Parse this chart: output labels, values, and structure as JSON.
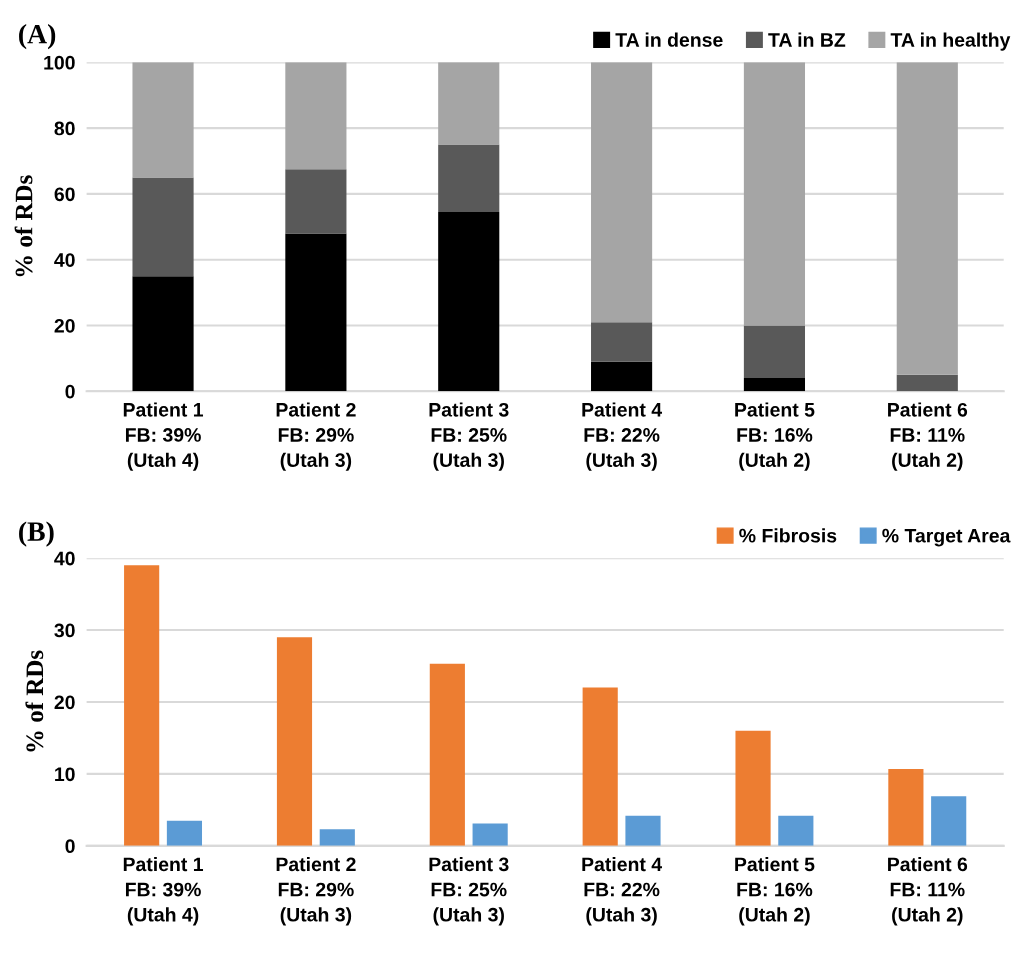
{
  "chart_data": [
    {
      "type": "bar",
      "title": "(A)",
      "ylabel": "% of RDs",
      "stacked": true,
      "categories": [
        "Patient 1\nFB: 39%\n(Utah 4)",
        "Patient 2\nFB: 29%\n(Utah 3)",
        "Patient 3\nFB: 25%\n(Utah 3)",
        "Patient 4\nFB: 22%\n(Utah 3)",
        "Patient 5\nFB: 16%\n(Utah 2)",
        "Patient 6\nFB: 11%\n(Utah 2)"
      ],
      "series": [
        {
          "name": "TA in dense",
          "color": "#000000",
          "values": [
            35,
            48,
            54.5,
            9,
            4,
            0
          ]
        },
        {
          "name": "TA in BZ",
          "color": "#595959",
          "values": [
            30,
            19.5,
            20.5,
            12,
            16,
            5
          ]
        },
        {
          "name": "TA in healthy",
          "color": "#a5a5a5",
          "values": [
            35,
            32.5,
            25,
            79,
            80,
            95
          ]
        }
      ],
      "ylim": [
        0,
        100
      ],
      "yticks": [
        0,
        20,
        40,
        60,
        80,
        100
      ],
      "grid": "y",
      "legend": "top right"
    },
    {
      "type": "bar",
      "title": "(B)",
      "ylabel": "% of RDs",
      "categories": [
        "Patient 1\nFB: 39%\n(Utah 4)",
        "Patient 2\nFB: 29%\n(Utah 3)",
        "Patient 3\nFB: 25%\n(Utah 3)",
        "Patient 4\nFB: 22%\n(Utah 3)",
        "Patient 5\nFB: 16%\n(Utah 2)",
        "Patient 6\nFB: 11%\n(Utah 2)"
      ],
      "series": [
        {
          "name": "% Fibrosis",
          "color": "#ed7d31",
          "values": [
            39,
            29,
            25.3,
            22,
            16,
            10.7
          ]
        },
        {
          "name": "% Target Area",
          "color": "#5b9bd5",
          "values": [
            3.5,
            2.3,
            3.1,
            4.2,
            4.2,
            6.9
          ]
        }
      ],
      "ylim": [
        0,
        40
      ],
      "yticks": [
        0,
        10,
        20,
        30,
        40
      ],
      "grid": "y",
      "legend": "top right"
    }
  ]
}
